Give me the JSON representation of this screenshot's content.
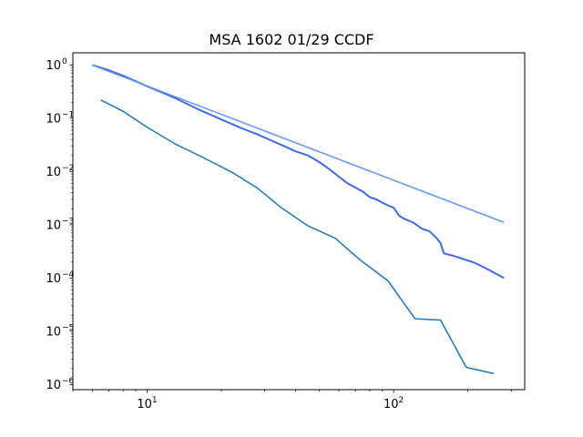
{
  "chart_data": {
    "type": "line",
    "title": "MSA 1602 01/29 CCDF",
    "xlabel": "",
    "ylabel": "",
    "xscale": "log",
    "yscale": "log",
    "xlim": [
      5,
      340
    ],
    "ylim": [
      8e-07,
      1.7
    ],
    "grid": false,
    "x_ticks": [
      {
        "value": 10,
        "base": "10",
        "exp": "1"
      },
      {
        "value": 100,
        "base": "10",
        "exp": "2"
      }
    ],
    "y_ticks": [
      {
        "value": 1,
        "base": "10",
        "exp": "0"
      },
      {
        "value": 0.1,
        "base": "10",
        "exp": "−1"
      },
      {
        "value": 0.01,
        "base": "10",
        "exp": "−2"
      },
      {
        "value": 0.001,
        "base": "10",
        "exp": "−3"
      },
      {
        "value": 0.0001,
        "base": "10",
        "exp": "−4"
      },
      {
        "value": 1e-05,
        "base": "10",
        "exp": "−5"
      },
      {
        "value": 1e-06,
        "base": "10",
        "exp": "−6"
      }
    ],
    "series": [
      {
        "color": "#1f77b4",
        "width": 1.5,
        "x": [
          6.5,
          8,
          10,
          13,
          17,
          22,
          28,
          35,
          45,
          58,
          73,
          95,
          122,
          155,
          197,
          255
        ],
        "y": [
          0.22,
          0.135,
          0.068,
          0.033,
          0.018,
          0.0098,
          0.0049,
          0.0021,
          0.00095,
          0.00056,
          0.00022,
          8.8e-05,
          1.72e-05,
          1.62e-05,
          2.1e-06,
          1.6e-06
        ]
      },
      {
        "color": "#4169e1",
        "width": 2,
        "x": [
          6,
          7,
          8,
          10,
          13,
          16,
          20,
          24,
          28,
          32,
          36,
          40,
          45,
          50,
          55,
          60,
          65,
          70,
          75,
          80,
          85,
          90,
          95,
          100,
          105,
          110,
          115,
          120,
          130,
          140,
          150,
          155,
          160,
          175,
          190,
          215,
          245,
          280
        ],
        "y": [
          1.0,
          0.8,
          0.63,
          0.4,
          0.24,
          0.15,
          0.095,
          0.066,
          0.05,
          0.038,
          0.03,
          0.024,
          0.02,
          0.015,
          0.011,
          0.008,
          0.006,
          0.005,
          0.0042,
          0.0033,
          0.003,
          0.0026,
          0.0023,
          0.0021,
          0.0015,
          0.0013,
          0.0012,
          0.0011,
          0.00085,
          0.00075,
          0.00055,
          0.00045,
          0.00029,
          0.00026,
          0.00023,
          0.00019,
          0.00014,
          0.0001
        ]
      },
      {
        "color": "#6495ed",
        "width": 1.5,
        "x": [
          6,
          280
        ],
        "y": [
          1.0,
          0.00111
        ]
      }
    ]
  }
}
